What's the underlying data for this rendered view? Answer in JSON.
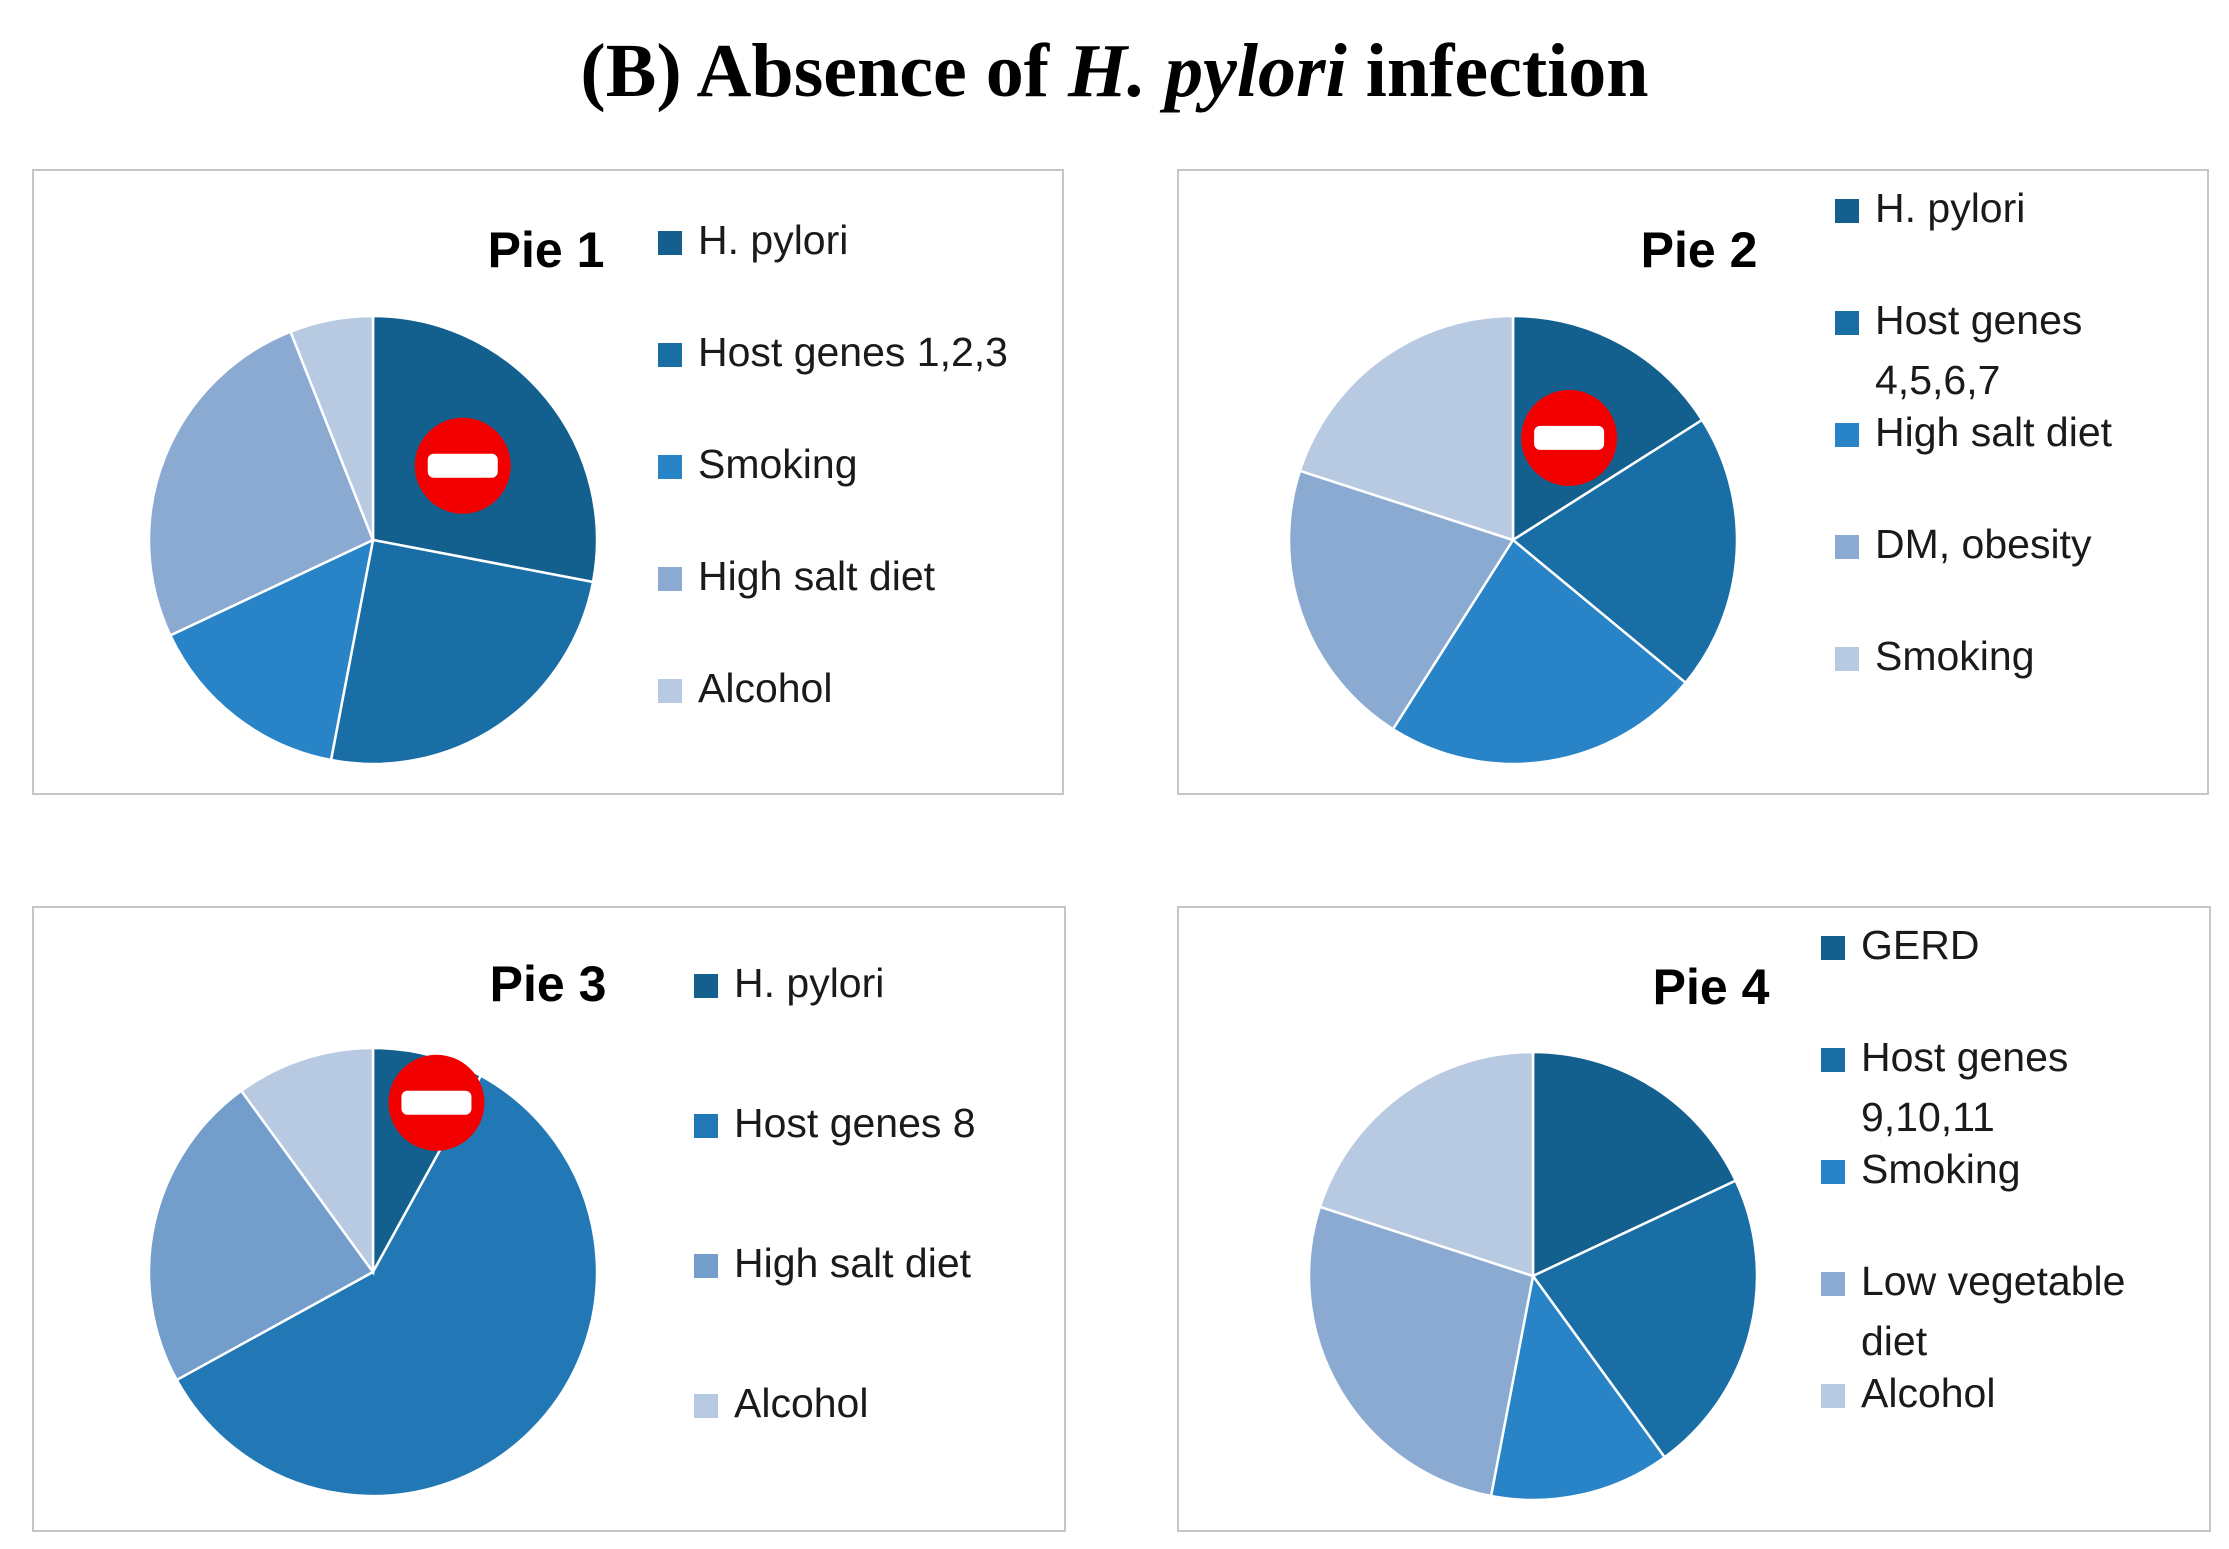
{
  "title": {
    "prefix": "(B) Absence of ",
    "italic": "H. pylori",
    "suffix": " infection"
  },
  "chart_data": [
    {
      "type": "pie",
      "title": "Pie 1",
      "labels": [
        "H. pylori",
        "Host genes 1,2,3",
        "Smoking",
        "High salt diet",
        "Alcohol"
      ],
      "values": [
        28,
        25,
        15,
        26,
        6
      ],
      "colors": [
        "#13608f",
        "#1a6ea6",
        "#2884c6",
        "#8aaad2",
        "#b8c9e2"
      ],
      "legend_position": "right",
      "absent_marker_on": "H. pylori"
    },
    {
      "type": "pie",
      "title": "Pie 2",
      "labels": [
        "H. pylori",
        "Host genes\n4,5,6,7",
        "High salt diet",
        "DM, obesity",
        "Smoking"
      ],
      "values": [
        16,
        20,
        23,
        21,
        20
      ],
      "colors": [
        "#13608f",
        "#1a6ea6",
        "#2884c6",
        "#8aaad2",
        "#b8c9e2"
      ],
      "legend_position": "right",
      "absent_marker_on": "H. pylori"
    },
    {
      "type": "pie",
      "title": "Pie 3",
      "labels": [
        "H. pylori",
        "Host genes 8",
        "High salt diet",
        "Alcohol"
      ],
      "values": [
        8,
        59,
        23,
        10
      ],
      "colors": [
        "#13608f",
        "#2178b4",
        "#739dcb",
        "#b8c9e2"
      ],
      "legend_position": "right",
      "absent_marker_on": "H. pylori"
    },
    {
      "type": "pie",
      "title": "Pie 4",
      "labels": [
        "GERD",
        "Host genes\n9,10,11",
        "Smoking",
        "Low vegetable\ndiet",
        "Alcohol"
      ],
      "values": [
        18,
        22,
        13,
        27,
        20
      ],
      "colors": [
        "#13608f",
        "#1a6ea6",
        "#2884c6",
        "#8aaad2",
        "#b8c9e2"
      ],
      "legend_position": "right"
    }
  ]
}
